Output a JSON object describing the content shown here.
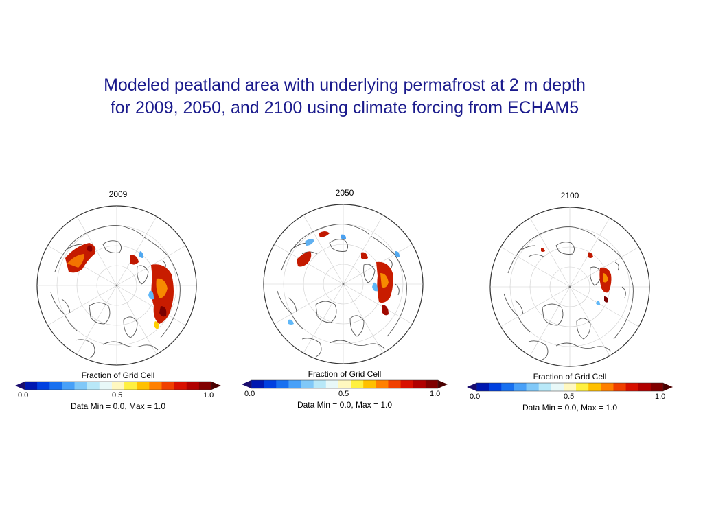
{
  "title": {
    "line1": "Modeled peatland area with underlying permafrost at 2 m depth",
    "line2": "for 2009, 2050, and 2100 using climate forcing from ECHAM5"
  },
  "colorbar": {
    "title": "Fraction of Grid Cell",
    "min_label": "0.0",
    "mid_label": "0.5",
    "max_label": "1.0",
    "range_text": "Data Min = 0.0, Max = 1.0",
    "colors": [
      "#0018b0",
      "#0040e0",
      "#1870f0",
      "#48a0f8",
      "#80c8f8",
      "#b8e8f8",
      "#e8f8f8",
      "#fff8c0",
      "#fff040",
      "#ffc000",
      "#ff8000",
      "#f04000",
      "#d81000",
      "#b00000",
      "#800000"
    ]
  },
  "panels": [
    {
      "year": "2009",
      "peat_fraction_shown": "high"
    },
    {
      "year": "2050",
      "peat_fraction_shown": "medium"
    },
    {
      "year": "2100",
      "peat_fraction_shown": "low"
    }
  ]
}
